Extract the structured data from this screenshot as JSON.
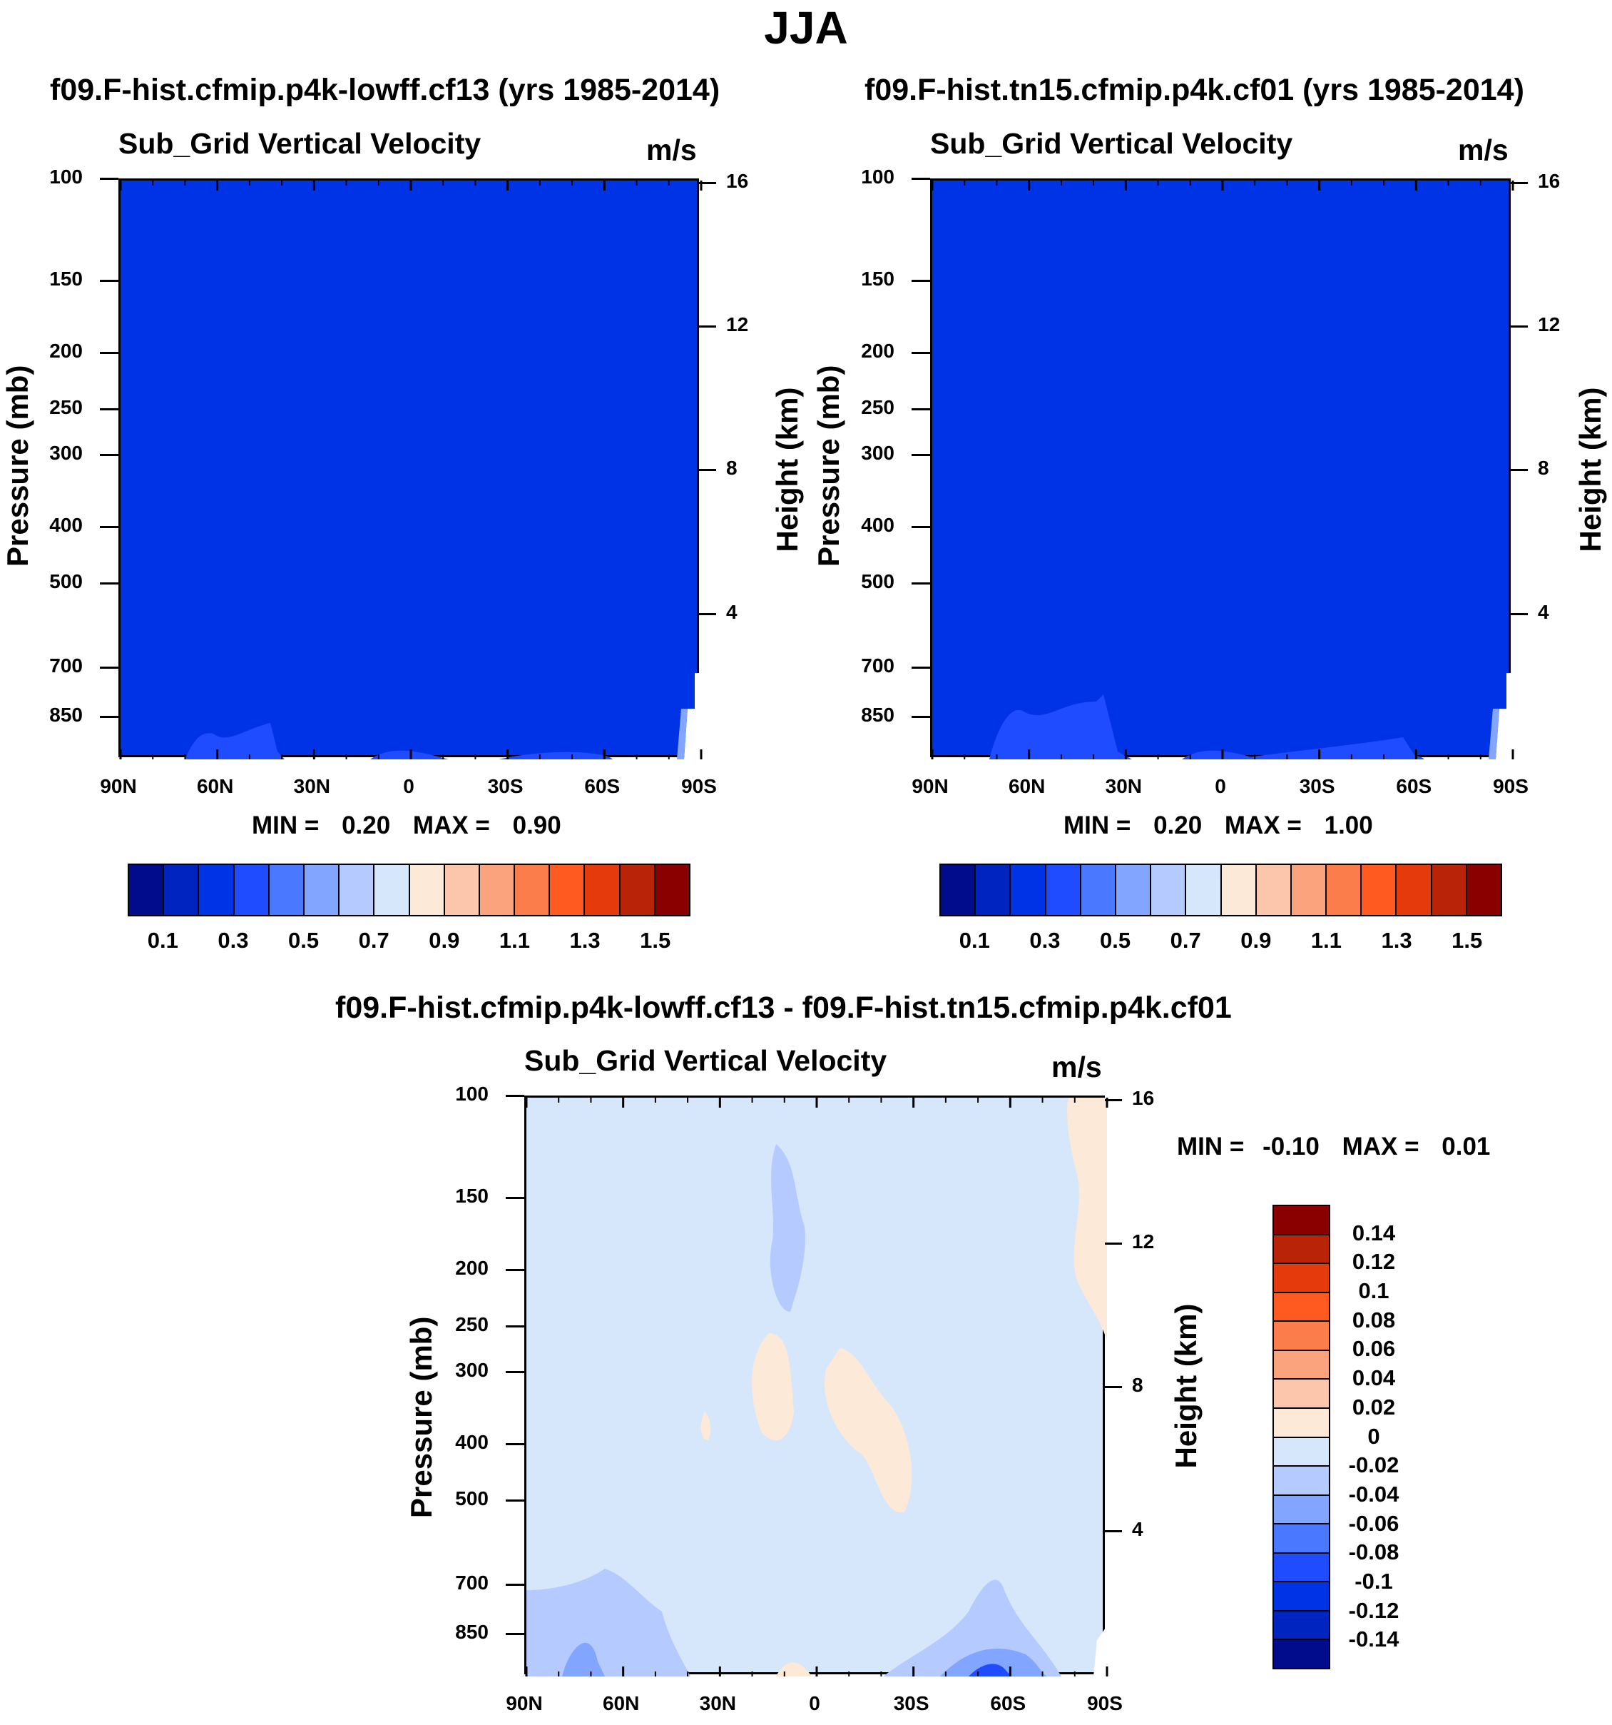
{
  "figure_title": "JJA",
  "colors": {
    "background_panels": "#0033e6",
    "diff_background": "#d6e6fb"
  },
  "panels": [
    {
      "title": "f09.F-hist.cfmip.p4k-lowff.cf13 (yrs 1985-2014)",
      "variable": "Sub_Grid Vertical Velocity",
      "units": "m/s",
      "y_left_title": "Pressure (mb)",
      "y_right_title": "Height (km)",
      "min_label": "MIN =",
      "min_value": "0.20",
      "max_label": "MAX =",
      "max_value": "0.90"
    },
    {
      "title": "f09.F-hist.tn15.cfmip.p4k.cf01 (yrs 1985-2014)",
      "variable": "Sub_Grid Vertical Velocity",
      "units": "m/s",
      "y_left_title": "Pressure (mb)",
      "y_right_title": "Height (km)",
      "min_label": "MIN =",
      "min_value": "0.20",
      "max_label": "MAX =",
      "max_value": "1.00"
    },
    {
      "title": "f09.F-hist.cfmip.p4k-lowff.cf13 - f09.F-hist.tn15.cfmip.p4k.cf01",
      "variable": "Sub_Grid Vertical Velocity",
      "units": "m/s",
      "y_left_title": "Pressure (mb)",
      "y_right_title": "Height (km)",
      "min_label": "MIN =",
      "min_value": "-0.10",
      "max_label": "MAX =",
      "max_value": "0.01"
    }
  ],
  "chart_data": [
    {
      "type": "heatmap",
      "title": "f09.F-hist.cfmip.p4k-lowff.cf13 (yrs 1985-2014)",
      "x_ticks": [
        "90N",
        "60N",
        "30N",
        "0",
        "30S",
        "60S",
        "90S"
      ],
      "y_ticks_left": [
        "100",
        "150",
        "200",
        "250",
        "300",
        "400",
        "500",
        "700",
        "850"
      ],
      "y_ticks_right": [
        "16",
        "12",
        "8",
        "4"
      ],
      "ylabel": "Pressure (mb)",
      "ylabel_right": "Height (km)",
      "y_scale": "log",
      "ylim": [
        1000,
        100
      ],
      "dominant_value_range": [
        0.2,
        0.3
      ],
      "min": 0.2,
      "max": 0.9,
      "colorbar_levels": [
        "0.1",
        "0.3",
        "0.5",
        "0.7",
        "0.9",
        "1.1",
        "1.3",
        "1.5"
      ]
    },
    {
      "type": "heatmap",
      "title": "f09.F-hist.tn15.cfmip.p4k.cf01 (yrs 1985-2014)",
      "x_ticks": [
        "90N",
        "60N",
        "30N",
        "0",
        "30S",
        "60S",
        "90S"
      ],
      "y_ticks_left": [
        "100",
        "150",
        "200",
        "250",
        "300",
        "400",
        "500",
        "700",
        "850"
      ],
      "y_ticks_right": [
        "16",
        "12",
        "8",
        "4"
      ],
      "ylabel": "Pressure (mb)",
      "ylabel_right": "Height (km)",
      "y_scale": "log",
      "ylim": [
        1000,
        100
      ],
      "dominant_value_range": [
        0.2,
        0.3
      ],
      "min": 0.2,
      "max": 1.0,
      "colorbar_levels": [
        "0.1",
        "0.3",
        "0.5",
        "0.7",
        "0.9",
        "1.1",
        "1.3",
        "1.5"
      ]
    },
    {
      "type": "heatmap",
      "title": "f09.F-hist.cfmip.p4k-lowff.cf13 - f09.F-hist.tn15.cfmip.p4k.cf01",
      "x_ticks": [
        "90N",
        "60N",
        "30N",
        "0",
        "30S",
        "60S",
        "90S"
      ],
      "y_ticks_left": [
        "100",
        "150",
        "200",
        "250",
        "300",
        "400",
        "500",
        "700",
        "850"
      ],
      "y_ticks_right": [
        "16",
        "12",
        "8",
        "4"
      ],
      "ylabel": "Pressure (mb)",
      "ylabel_right": "Height (km)",
      "y_scale": "log",
      "ylim": [
        1000,
        100
      ],
      "dominant_value_range": [
        -0.02,
        0
      ],
      "min": -0.1,
      "max": 0.01,
      "colorbar_levels": [
        "0.14",
        "0.12",
        "0.1",
        "0.08",
        "0.06",
        "0.04",
        "0.02",
        "0",
        "-0.02",
        "-0.04",
        "-0.06",
        "-0.08",
        "-0.1",
        "-0.12",
        "-0.14"
      ]
    }
  ],
  "colorbar_colors": [
    "#000c8c",
    "#0024c0",
    "#0033e6",
    "#1f4cff",
    "#4a78ff",
    "#82a5ff",
    "#b5cbff",
    "#d6e6fb",
    "#fde9d8",
    "#fbc6ab",
    "#fba37d",
    "#fb7d4c",
    "#ff5a1f",
    "#e43a0c",
    "#b92408",
    "#8a0000"
  ],
  "diff_colorbar_colors": [
    "#8a0000",
    "#b92408",
    "#e43a0c",
    "#ff5a1f",
    "#fb7d4c",
    "#fba37d",
    "#fbc6ab",
    "#fde9d8",
    "#d6e6fb",
    "#b5cbff",
    "#82a5ff",
    "#4a78ff",
    "#1f4cff",
    "#0033e6",
    "#0024c0",
    "#000c8c"
  ]
}
